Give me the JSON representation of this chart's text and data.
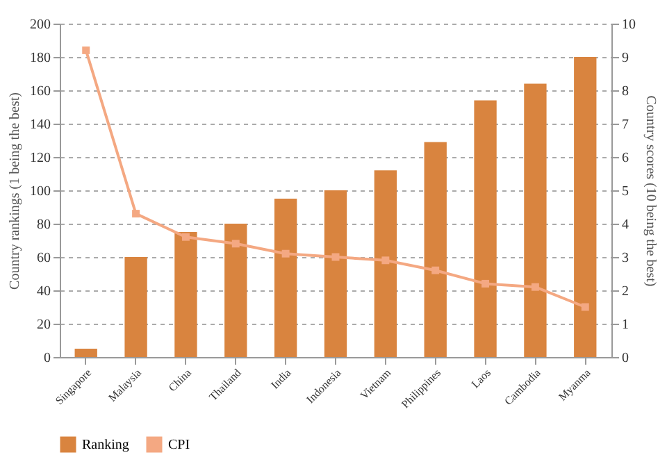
{
  "chart_data": {
    "type": "bar",
    "ylabel": "Country rankings (1 being the best)",
    "y2label": "Country scores (10 being the best)",
    "categories": [
      "Singapore",
      "Malaysia",
      "China",
      "Thailand",
      "India",
      "Indonesia",
      "Vietnam",
      "Philippines",
      "Laos",
      "Cambodia",
      "Myanma"
    ],
    "series": [
      {
        "name": "Ranking",
        "color": "#d9843f",
        "values": [
          5,
          60,
          75,
          80,
          95,
          100,
          112,
          129,
          154,
          164,
          180
        ]
      },
      {
        "name": "CPI",
        "type": "line",
        "axis": "y2",
        "color": "#f4a882",
        "values": [
          9.2,
          4.3,
          3.6,
          3.4,
          3.1,
          3.0,
          2.9,
          2.6,
          2.2,
          2.1,
          1.5
        ]
      }
    ],
    "ylim": [
      0,
      200
    ],
    "yticks": [
      0,
      20,
      40,
      60,
      80,
      100,
      120,
      140,
      160,
      180,
      200
    ],
    "y2lim": [
      0,
      10
    ],
    "y2ticks": [
      0,
      1,
      2,
      3,
      4,
      5,
      6,
      7,
      8,
      9,
      10
    ],
    "grid": "y",
    "legend": "bottom",
    "marker": "square",
    "line_style": "solid"
  }
}
